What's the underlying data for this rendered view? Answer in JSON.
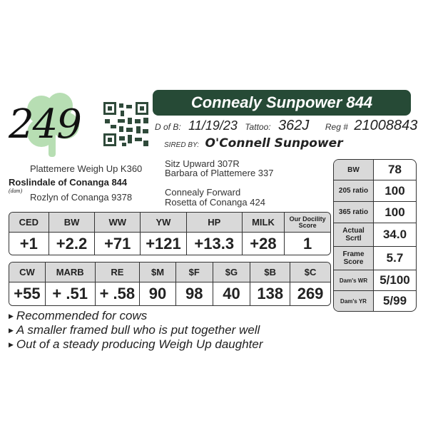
{
  "lot_number": "249",
  "title": "Connealy Sunpower 844",
  "dob_label": "D of B:",
  "dob": "11/19/23",
  "tattoo_label": "Tattoo:",
  "tattoo": "362J",
  "reg_label": "Reg #",
  "reg": "21008843",
  "sired_by_label": "SIRED BY:",
  "sire": "O'Connell Sunpower",
  "pedigree": {
    "sire_sire": "Sitz Upward 307R",
    "sire_dam": "Barbara of Plattemere 337",
    "dam_sire": "Plattemere Weigh Up K360",
    "dam": "Roslindale of Conanga 844",
    "dam_label": "(dam)",
    "dam_dam": "Rozlyn of Conanga 9378",
    "mgs_sire": "Connealy Forward",
    "mgs_dam": "Rosetta of Conanga 424"
  },
  "epd1": {
    "headers": [
      "CED",
      "BW",
      "WW",
      "YW",
      "HP",
      "MILK",
      "Our Docility Score"
    ],
    "values": [
      "+1",
      "+2.2",
      "+71",
      "+121",
      "+13.3",
      "+28",
      "1"
    ]
  },
  "epd2": {
    "headers": [
      "CW",
      "MARB",
      "RE",
      "$M",
      "$F",
      "$G",
      "$B",
      "$C"
    ],
    "values": [
      "+55",
      "+ .51",
      "+ .58",
      "90",
      "98",
      "40",
      "138",
      "269"
    ]
  },
  "side": [
    {
      "label": "BW",
      "value": "78"
    },
    {
      "label": "205 ratio",
      "value": "100"
    },
    {
      "label": "365 ratio",
      "value": "100"
    },
    {
      "label": "Actual Scrtl",
      "value": "34.0"
    },
    {
      "label": "Frame Score",
      "value": "5.7"
    },
    {
      "label": "Dam's WR",
      "value": "5/100"
    },
    {
      "label": "Dam's YR",
      "value": "5/99"
    }
  ],
  "bullets": [
    "Recommended for cows",
    "A smaller framed bull who is put together well",
    "Out of a steady producing Weigh Up daughter"
  ],
  "colors": {
    "title_bg": "#264a36",
    "header_bg": "#d9d9d9",
    "clover": "#9fd49a"
  },
  "icons": {
    "logo": "shamrock-icon",
    "qr": "qr-code-icon",
    "bullet": "triangle-bullet-icon"
  }
}
